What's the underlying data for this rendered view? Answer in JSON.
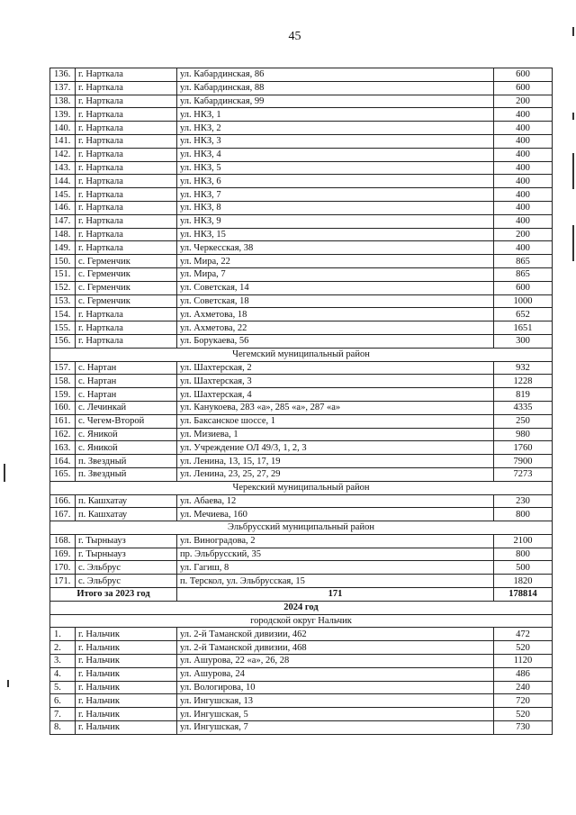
{
  "page_number": "45",
  "rows": [
    {
      "type": "row",
      "n": "136.",
      "place": "г. Нарткала",
      "address": "ул. Кабардинская, 86",
      "value": "600"
    },
    {
      "type": "row",
      "n": "137.",
      "place": "г. Нарткала",
      "address": "ул. Кабардинская, 88",
      "value": "600"
    },
    {
      "type": "row",
      "n": "138.",
      "place": "г. Нарткала",
      "address": "ул. Кабардинская, 99",
      "value": "200"
    },
    {
      "type": "row",
      "n": "139.",
      "place": "г. Нарткала",
      "address": "ул. НКЗ, 1",
      "value": "400"
    },
    {
      "type": "row",
      "n": "140.",
      "place": "г. Нарткала",
      "address": "ул. НКЗ, 2",
      "value": "400"
    },
    {
      "type": "row",
      "n": "141.",
      "place": "г. Нарткала",
      "address": "ул. НКЗ, 3",
      "value": "400"
    },
    {
      "type": "row",
      "n": "142.",
      "place": "г. Нарткала",
      "address": "ул. НКЗ, 4",
      "value": "400"
    },
    {
      "type": "row",
      "n": "143.",
      "place": "г. Нарткала",
      "address": "ул. НКЗ, 5",
      "value": "400"
    },
    {
      "type": "row",
      "n": "144.",
      "place": "г. Нарткала",
      "address": "ул. НКЗ, 6",
      "value": "400"
    },
    {
      "type": "row",
      "n": "145.",
      "place": "г. Нарткала",
      "address": "ул. НКЗ, 7",
      "value": "400"
    },
    {
      "type": "row",
      "n": "146.",
      "place": "г. Нарткала",
      "address": "ул. НКЗ, 8",
      "value": "400"
    },
    {
      "type": "row",
      "n": "147.",
      "place": "г. Нарткала",
      "address": "ул. НКЗ, 9",
      "value": "400"
    },
    {
      "type": "row",
      "n": "148.",
      "place": "г. Нарткала",
      "address": "ул. НКЗ, 15",
      "value": "200"
    },
    {
      "type": "row",
      "n": "149.",
      "place": "г. Нарткала",
      "address": "ул. Черкесская, 38",
      "value": "400"
    },
    {
      "type": "row",
      "n": "150.",
      "place": "с. Герменчик",
      "address": "ул. Мира, 22",
      "value": "865"
    },
    {
      "type": "row",
      "n": "151.",
      "place": "с. Герменчик",
      "address": "ул. Мира, 7",
      "value": "865"
    },
    {
      "type": "row",
      "n": "152.",
      "place": "с. Герменчик",
      "address": "ул. Советская, 14",
      "value": "600"
    },
    {
      "type": "row",
      "n": "153.",
      "place": "с. Герменчик",
      "address": "ул. Советская, 18",
      "value": "1000"
    },
    {
      "type": "row",
      "n": "154.",
      "place": "г. Нарткала",
      "address": "ул. Ахметова, 18",
      "value": "652"
    },
    {
      "type": "row",
      "n": "155.",
      "place": "г. Нарткала",
      "address": "ул. Ахметова, 22",
      "value": "1651"
    },
    {
      "type": "row",
      "n": "156.",
      "place": "г. Нарткала",
      "address": "ул. Борукаева, 56",
      "value": "300"
    },
    {
      "type": "section",
      "label": "Чегемский муниципальный район"
    },
    {
      "type": "row",
      "n": "157.",
      "place": "с. Нартан",
      "address": "ул. Шахтерская, 2",
      "value": "932"
    },
    {
      "type": "row",
      "n": "158.",
      "place": "с. Нартан",
      "address": "ул. Шахтерская, 3",
      "value": "1228"
    },
    {
      "type": "row",
      "n": "159.",
      "place": "с. Нартан",
      "address": "ул. Шахтерская, 4",
      "value": "819"
    },
    {
      "type": "row",
      "n": "160.",
      "place": "с. Лечинкай",
      "address": "ул. Канукоева, 283 «а», 285 «а», 287 «а»",
      "value": "4335"
    },
    {
      "type": "row",
      "n": "161.",
      "place": "с. Чегем-Второй",
      "address": "ул. Баксанское шоссе, 1",
      "value": "250"
    },
    {
      "type": "row",
      "n": "162.",
      "place": "с. Яникой",
      "address": "ул. Мизиева, 1",
      "value": "980"
    },
    {
      "type": "row",
      "n": "163.",
      "place": "с. Яникой",
      "address": "ул. Учреждение ОЛ 49/3, 1, 2, 3",
      "value": "1760"
    },
    {
      "type": "row",
      "n": "164.",
      "place": "п. Звездный",
      "address": "ул. Ленина, 13, 15, 17, 19",
      "value": "7900"
    },
    {
      "type": "row",
      "n": "165.",
      "place": "п. Звездный",
      "address": "ул. Ленина, 23, 25, 27, 29",
      "value": "7273"
    },
    {
      "type": "section",
      "label": "Черекский муниципальный район"
    },
    {
      "type": "row",
      "n": "166.",
      "place": "п. Кашхатау",
      "address": "ул. Абаева, 12",
      "value": "230"
    },
    {
      "type": "row",
      "n": "167.",
      "place": "п. Кашхатау",
      "address": "ул. Мечиева, 160",
      "value": "800"
    },
    {
      "type": "section",
      "label": "Эльбрусский муниципальный район"
    },
    {
      "type": "row",
      "n": "168.",
      "place": "г. Тырныауз",
      "address": "ул. Виноградова, 2",
      "value": "2100"
    },
    {
      "type": "row",
      "n": "169.",
      "place": "г. Тырныауз",
      "address": "пр. Эльбрусский, 35",
      "value": "800"
    },
    {
      "type": "row",
      "n": "170.",
      "place": "с. Эльбрус",
      "address": "ул. Гагиш, 8",
      "value": "500"
    },
    {
      "type": "row",
      "n": "171.",
      "place": "с. Эльбрус",
      "address": "п. Терскол, ул. Эльбрусская, 15",
      "value": "1820"
    },
    {
      "type": "total",
      "label": "Итого за 2023 год",
      "count": "171",
      "value": "178814"
    },
    {
      "type": "year",
      "label": "2024 год"
    },
    {
      "type": "section",
      "label": "городской округ Нальчик"
    },
    {
      "type": "row",
      "n": "1.",
      "place": "г. Нальчик",
      "address": "ул. 2-й Таманской дивизии, 462",
      "value": "472"
    },
    {
      "type": "row",
      "n": "2.",
      "place": "г. Нальчик",
      "address": "ул. 2-й Таманской дивизии, 468",
      "value": "520"
    },
    {
      "type": "row",
      "n": "3.",
      "place": "г. Нальчик",
      "address": "ул. Ашурова, 22 «а», 26, 28",
      "value": "1120"
    },
    {
      "type": "row",
      "n": "4.",
      "place": "г. Нальчик",
      "address": "ул. Ашурова, 24",
      "value": "486"
    },
    {
      "type": "row",
      "n": "5.",
      "place": "г. Нальчик",
      "address": "ул. Вологирова, 10",
      "value": "240"
    },
    {
      "type": "row",
      "n": "6.",
      "place": "г. Нальчик",
      "address": "ул. Ингушская, 13",
      "value": "720"
    },
    {
      "type": "row",
      "n": "7.",
      "place": "г. Нальчик",
      "address": "ул. Ингушская, 5",
      "value": "520"
    },
    {
      "type": "row",
      "n": "8.",
      "place": "г. Нальчик",
      "address": "ул. Ингушская, 7",
      "value": "730"
    }
  ]
}
